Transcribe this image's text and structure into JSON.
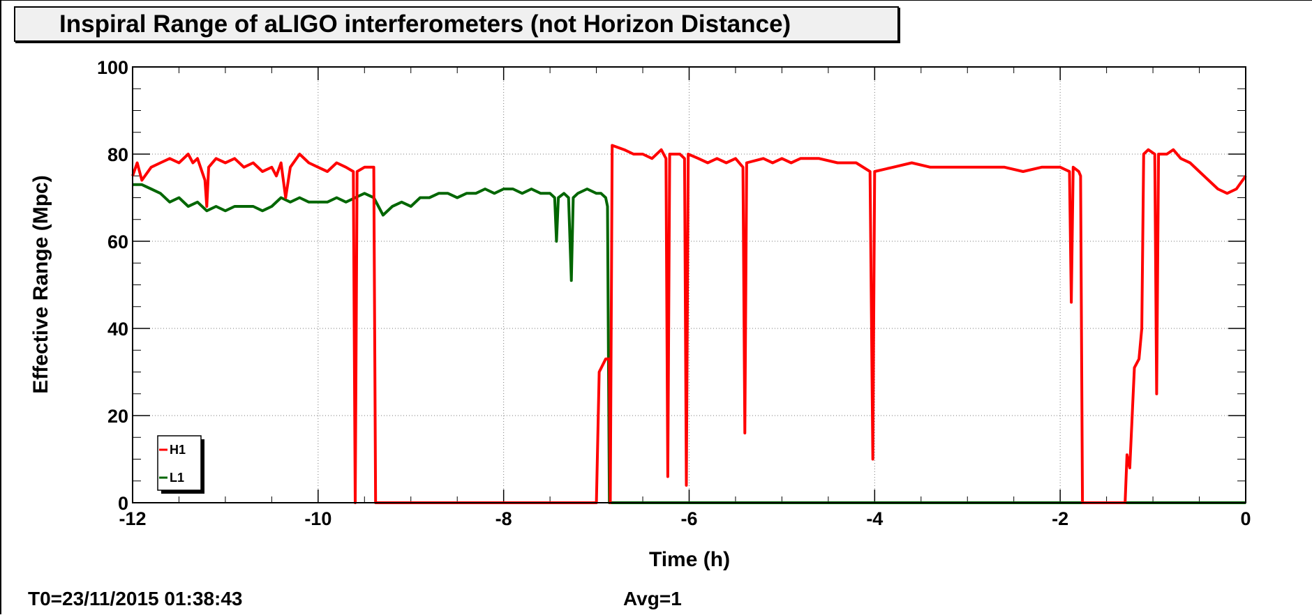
{
  "chart_data": {
    "type": "line",
    "title": "Inspiral Range of aLIGO interferometers (not Horizon Distance)",
    "xlabel": "Time (h)",
    "ylabel": "Effective Range (Mpc)",
    "xlim": [
      -12,
      0
    ],
    "ylim": [
      0,
      100
    ],
    "xticks": [
      "-12",
      "-10",
      "-8",
      "-6",
      "-4",
      "-2",
      "0"
    ],
    "yticks": [
      "0",
      "20",
      "40",
      "60",
      "80",
      "100"
    ],
    "grid": true,
    "legend_position": "bottom-left",
    "series": [
      {
        "name": "H1",
        "color": "#ff0000",
        "points": [
          [
            -12.0,
            75
          ],
          [
            -11.95,
            78
          ],
          [
            -11.9,
            74
          ],
          [
            -11.8,
            77
          ],
          [
            -11.7,
            78
          ],
          [
            -11.6,
            79
          ],
          [
            -11.5,
            78
          ],
          [
            -11.4,
            80
          ],
          [
            -11.35,
            78
          ],
          [
            -11.3,
            79
          ],
          [
            -11.22,
            74
          ],
          [
            -11.2,
            68
          ],
          [
            -11.18,
            77
          ],
          [
            -11.1,
            79
          ],
          [
            -11.0,
            78
          ],
          [
            -10.9,
            79
          ],
          [
            -10.8,
            77
          ],
          [
            -10.7,
            78
          ],
          [
            -10.6,
            76
          ],
          [
            -10.5,
            77
          ],
          [
            -10.45,
            75
          ],
          [
            -10.4,
            78
          ],
          [
            -10.35,
            70
          ],
          [
            -10.3,
            77
          ],
          [
            -10.2,
            80
          ],
          [
            -10.1,
            78
          ],
          [
            -10.0,
            77
          ],
          [
            -9.9,
            76
          ],
          [
            -9.8,
            78
          ],
          [
            -9.7,
            77
          ],
          [
            -9.62,
            76
          ],
          [
            -9.6,
            0
          ],
          [
            -9.58,
            76
          ],
          [
            -9.5,
            77
          ],
          [
            -9.4,
            77
          ],
          [
            -9.38,
            0
          ],
          [
            -8.0,
            0
          ],
          [
            -7.0,
            0
          ],
          [
            -6.97,
            30
          ],
          [
            -6.9,
            33
          ],
          [
            -6.86,
            33
          ],
          [
            -6.85,
            0
          ],
          [
            -6.83,
            82
          ],
          [
            -6.7,
            81
          ],
          [
            -6.6,
            80
          ],
          [
            -6.5,
            80
          ],
          [
            -6.4,
            79
          ],
          [
            -6.3,
            81
          ],
          [
            -6.25,
            79
          ],
          [
            -6.23,
            6
          ],
          [
            -6.21,
            80
          ],
          [
            -6.1,
            80
          ],
          [
            -6.05,
            79
          ],
          [
            -6.03,
            4
          ],
          [
            -6.01,
            80
          ],
          [
            -5.9,
            79
          ],
          [
            -5.8,
            78
          ],
          [
            -5.7,
            79
          ],
          [
            -5.6,
            78
          ],
          [
            -5.5,
            79
          ],
          [
            -5.42,
            77
          ],
          [
            -5.4,
            16
          ],
          [
            -5.38,
            78
          ],
          [
            -5.2,
            79
          ],
          [
            -5.1,
            78
          ],
          [
            -5.0,
            79
          ],
          [
            -4.9,
            78
          ],
          [
            -4.8,
            79
          ],
          [
            -4.6,
            79
          ],
          [
            -4.4,
            78
          ],
          [
            -4.2,
            78
          ],
          [
            -4.05,
            76
          ],
          [
            -4.02,
            10
          ],
          [
            -4.0,
            76
          ],
          [
            -3.8,
            77
          ],
          [
            -3.6,
            78
          ],
          [
            -3.4,
            77
          ],
          [
            -3.2,
            77
          ],
          [
            -3.0,
            77
          ],
          [
            -2.8,
            77
          ],
          [
            -2.6,
            77
          ],
          [
            -2.4,
            76
          ],
          [
            -2.2,
            77
          ],
          [
            -2.0,
            77
          ],
          [
            -1.9,
            76
          ],
          [
            -1.88,
            46
          ],
          [
            -1.86,
            77
          ],
          [
            -1.8,
            76
          ],
          [
            -1.78,
            75
          ],
          [
            -1.76,
            0
          ],
          [
            -1.3,
            0
          ],
          [
            -1.28,
            11
          ],
          [
            -1.25,
            8
          ],
          [
            -1.2,
            31
          ],
          [
            -1.15,
            33
          ],
          [
            -1.12,
            40
          ],
          [
            -1.1,
            80
          ],
          [
            -1.05,
            81
          ],
          [
            -0.98,
            80
          ],
          [
            -0.96,
            25
          ],
          [
            -0.94,
            80
          ],
          [
            -0.85,
            80
          ],
          [
            -0.78,
            81
          ],
          [
            -0.7,
            79
          ],
          [
            -0.6,
            78
          ],
          [
            -0.5,
            76
          ],
          [
            -0.4,
            74
          ],
          [
            -0.3,
            72
          ],
          [
            -0.2,
            71
          ],
          [
            -0.1,
            72
          ],
          [
            0.0,
            75
          ]
        ]
      },
      {
        "name": "L1",
        "color": "#006600",
        "points": [
          [
            -12.0,
            73
          ],
          [
            -11.9,
            73
          ],
          [
            -11.8,
            72
          ],
          [
            -11.7,
            71
          ],
          [
            -11.6,
            69
          ],
          [
            -11.5,
            70
          ],
          [
            -11.4,
            68
          ],
          [
            -11.3,
            69
          ],
          [
            -11.2,
            67
          ],
          [
            -11.1,
            68
          ],
          [
            -11.0,
            67
          ],
          [
            -10.9,
            68
          ],
          [
            -10.8,
            68
          ],
          [
            -10.7,
            68
          ],
          [
            -10.6,
            67
          ],
          [
            -10.5,
            68
          ],
          [
            -10.4,
            70
          ],
          [
            -10.3,
            69
          ],
          [
            -10.2,
            70
          ],
          [
            -10.1,
            69
          ],
          [
            -10.0,
            69
          ],
          [
            -9.9,
            69
          ],
          [
            -9.8,
            70
          ],
          [
            -9.7,
            69
          ],
          [
            -9.6,
            70
          ],
          [
            -9.5,
            71
          ],
          [
            -9.4,
            70
          ],
          [
            -9.3,
            66
          ],
          [
            -9.2,
            68
          ],
          [
            -9.1,
            69
          ],
          [
            -9.0,
            68
          ],
          [
            -8.9,
            70
          ],
          [
            -8.8,
            70
          ],
          [
            -8.7,
            71
          ],
          [
            -8.6,
            71
          ],
          [
            -8.5,
            70
          ],
          [
            -8.4,
            71
          ],
          [
            -8.3,
            71
          ],
          [
            -8.2,
            72
          ],
          [
            -8.1,
            71
          ],
          [
            -8.0,
            72
          ],
          [
            -7.9,
            72
          ],
          [
            -7.8,
            71
          ],
          [
            -7.7,
            72
          ],
          [
            -7.6,
            71
          ],
          [
            -7.5,
            71
          ],
          [
            -7.45,
            70
          ],
          [
            -7.43,
            60
          ],
          [
            -7.41,
            70
          ],
          [
            -7.35,
            71
          ],
          [
            -7.3,
            70
          ],
          [
            -7.27,
            51
          ],
          [
            -7.25,
            70
          ],
          [
            -7.2,
            71
          ],
          [
            -7.1,
            72
          ],
          [
            -7.0,
            71
          ],
          [
            -6.95,
            71
          ],
          [
            -6.9,
            70
          ],
          [
            -6.88,
            68
          ],
          [
            -6.86,
            0
          ],
          [
            -3.0,
            0
          ],
          [
            0.0,
            0
          ]
        ]
      }
    ]
  },
  "footer": {
    "t0": "T0=23/11/2015 01:38:43",
    "avg": "Avg=1"
  }
}
